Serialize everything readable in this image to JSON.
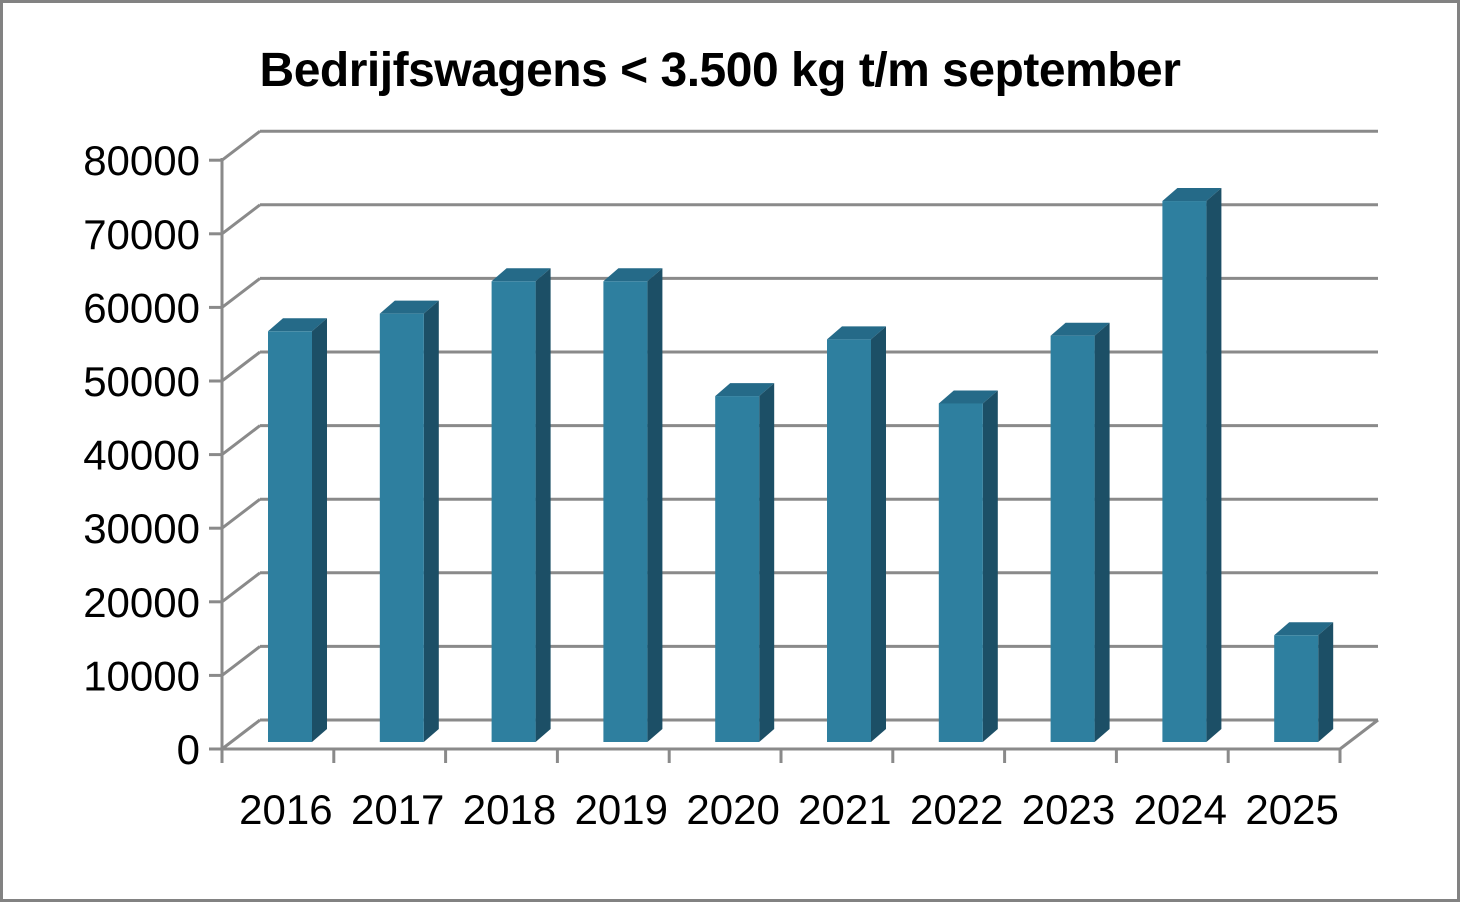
{
  "frame": {
    "background": "#FFFFFF",
    "border_color": "#828282"
  },
  "chart_data": {
    "type": "bar",
    "variant": "3d-column",
    "title": "Bedrijfswagens < 3.500 kg t/m september",
    "categories": [
      "2016",
      "2017",
      "2018",
      "2019",
      "2020",
      "2021",
      "2022",
      "2023",
      "2024",
      "2025"
    ],
    "values": [
      55800,
      58200,
      62600,
      62600,
      47000,
      54700,
      46000,
      55200,
      73500,
      14500
    ],
    "xlabel": "",
    "ylabel": "",
    "ylim": [
      0,
      80000
    ],
    "ytick_step": 10000,
    "ytick_labels": [
      "0",
      "10000",
      "20000",
      "30000",
      "40000",
      "50000",
      "60000",
      "70000",
      "80000"
    ],
    "grid": true,
    "legend": "none",
    "colors": {
      "bar_front": "#2E7F9F",
      "bar_top": "#256A88",
      "bar_side": "#1C4F66",
      "grid_axis": "#8A8A8A",
      "text": "#000000"
    }
  }
}
